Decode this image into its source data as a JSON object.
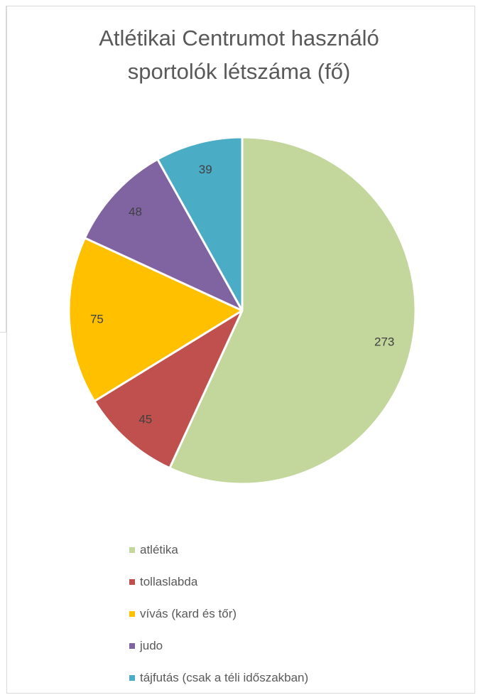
{
  "chart_data": {
    "type": "pie",
    "title_lines": [
      "Atlétikai Centrumot használó",
      "sportolók létszáma (fő)"
    ],
    "slices": [
      {
        "label": "atlétika",
        "value": 273,
        "color": "#c3d69b"
      },
      {
        "label": "tollaslabda",
        "value": 45,
        "color": "#c0504d"
      },
      {
        "label": "vívás (kard és tőr)",
        "value": 75,
        "color": "#ffc000"
      },
      {
        "label": "judo",
        "value": 48,
        "color": "#8064a2"
      },
      {
        "label": "tájfutás (csak a téli időszakban)",
        "value": 39,
        "color": "#4bacc6"
      }
    ],
    "start_angle": "12 o'clock",
    "direction": "clockwise",
    "data_labels": "inside end",
    "legend_position": "bottom"
  }
}
